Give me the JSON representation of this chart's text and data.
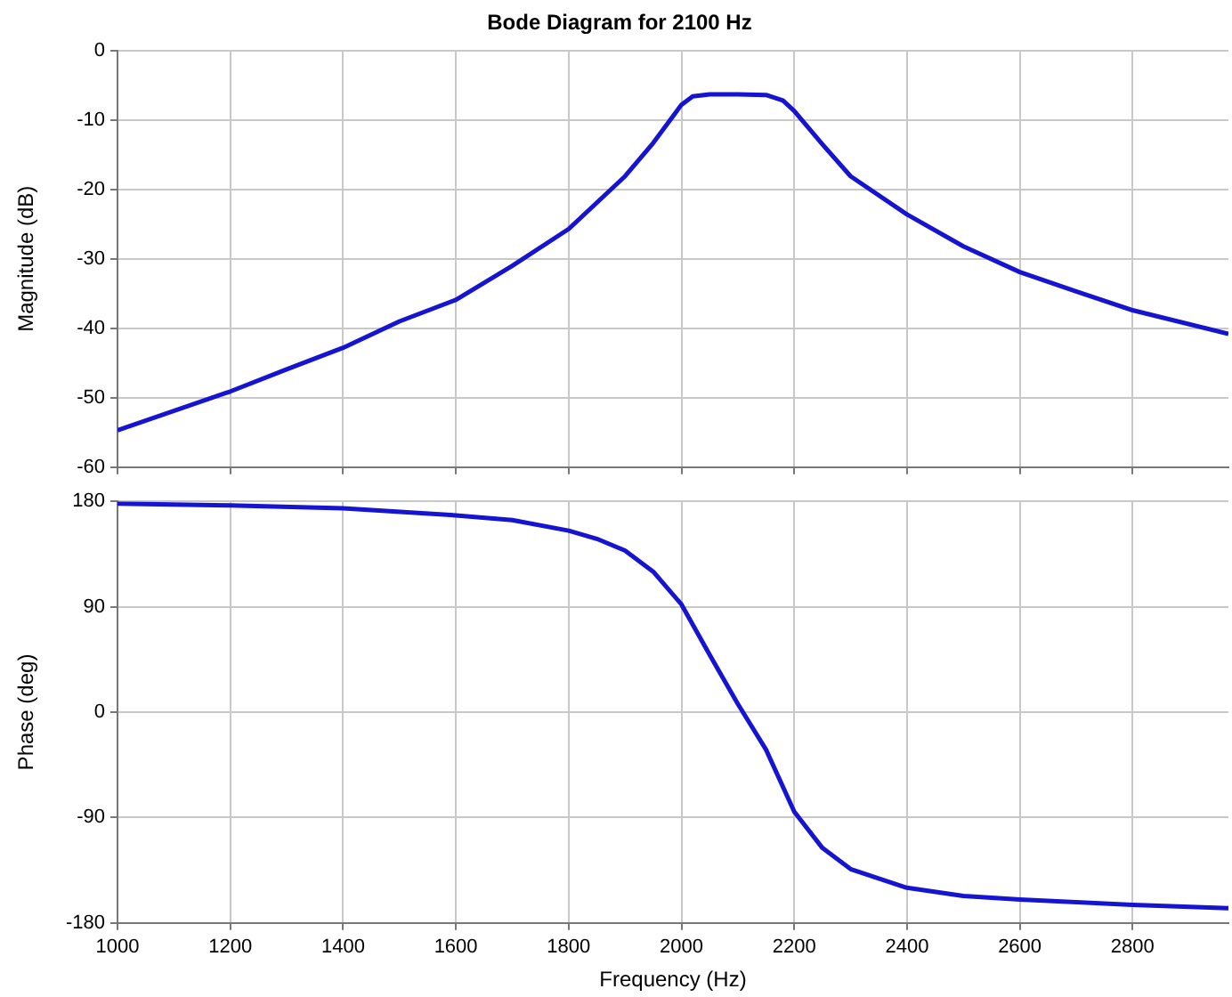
{
  "chart_data": [
    {
      "type": "line",
      "title": "Bode Diagram for 2100 Hz",
      "ylabel": "Magnitude (dB)",
      "x": [
        1000,
        1200,
        1300,
        1400,
        1500,
        1600,
        1700,
        1800,
        1900,
        1950,
        2000,
        2020,
        2050,
        2100,
        2150,
        2180,
        2200,
        2250,
        2300,
        2400,
        2500,
        2600,
        2700,
        2800,
        2970
      ],
      "series": [
        {
          "color": "#1414d2",
          "values": [
            -54.7,
            -49.1,
            -45.9,
            -42.8,
            -39,
            -35.9,
            -31,
            -25.7,
            -18.1,
            -13.3,
            -7.8,
            -6.6,
            -6.3,
            -6.3,
            -6.4,
            -7.2,
            -8.7,
            -13.5,
            -18.1,
            -23.6,
            -28.2,
            -31.9,
            -34.7,
            -37.4,
            -40.8
          ]
        }
      ],
      "xlim": [
        1000,
        2970
      ],
      "xticks": [
        1000,
        1200,
        1400,
        1600,
        1800,
        2000,
        2200,
        2400,
        2600,
        2800
      ],
      "ylim": [
        -60,
        0
      ],
      "yticks": [
        -60,
        -50,
        -40,
        -30,
        -20,
        -10,
        0
      ],
      "grid": true,
      "tick_labels": "y",
      "marker": "none",
      "line_style": "solid"
    },
    {
      "type": "line",
      "xlabel": "Frequency (Hz)",
      "ylabel": "Phase (deg)",
      "x": [
        1000,
        1200,
        1400,
        1600,
        1700,
        1800,
        1850,
        1900,
        1950,
        2000,
        2050,
        2100,
        2150,
        2200,
        2250,
        2300,
        2400,
        2500,
        2600,
        2800,
        2970
      ],
      "series": [
        {
          "color": "#1414d2",
          "values": [
            178,
            176.5,
            174,
            168,
            164,
            155,
            148,
            138,
            120,
            92,
            49,
            7,
            -32,
            -85,
            -116,
            -134,
            -150,
            -157,
            -160,
            -164.5,
            -167.5
          ]
        }
      ],
      "xlim": [
        1000,
        2970
      ],
      "xticks": [
        1000,
        1200,
        1400,
        1600,
        1800,
        2000,
        2200,
        2400,
        2600,
        2800
      ],
      "ylim": [
        -180,
        180
      ],
      "yticks": [
        -180,
        -90,
        0,
        90,
        180
      ],
      "grid": true,
      "marker": "none",
      "line_style": "solid"
    }
  ]
}
